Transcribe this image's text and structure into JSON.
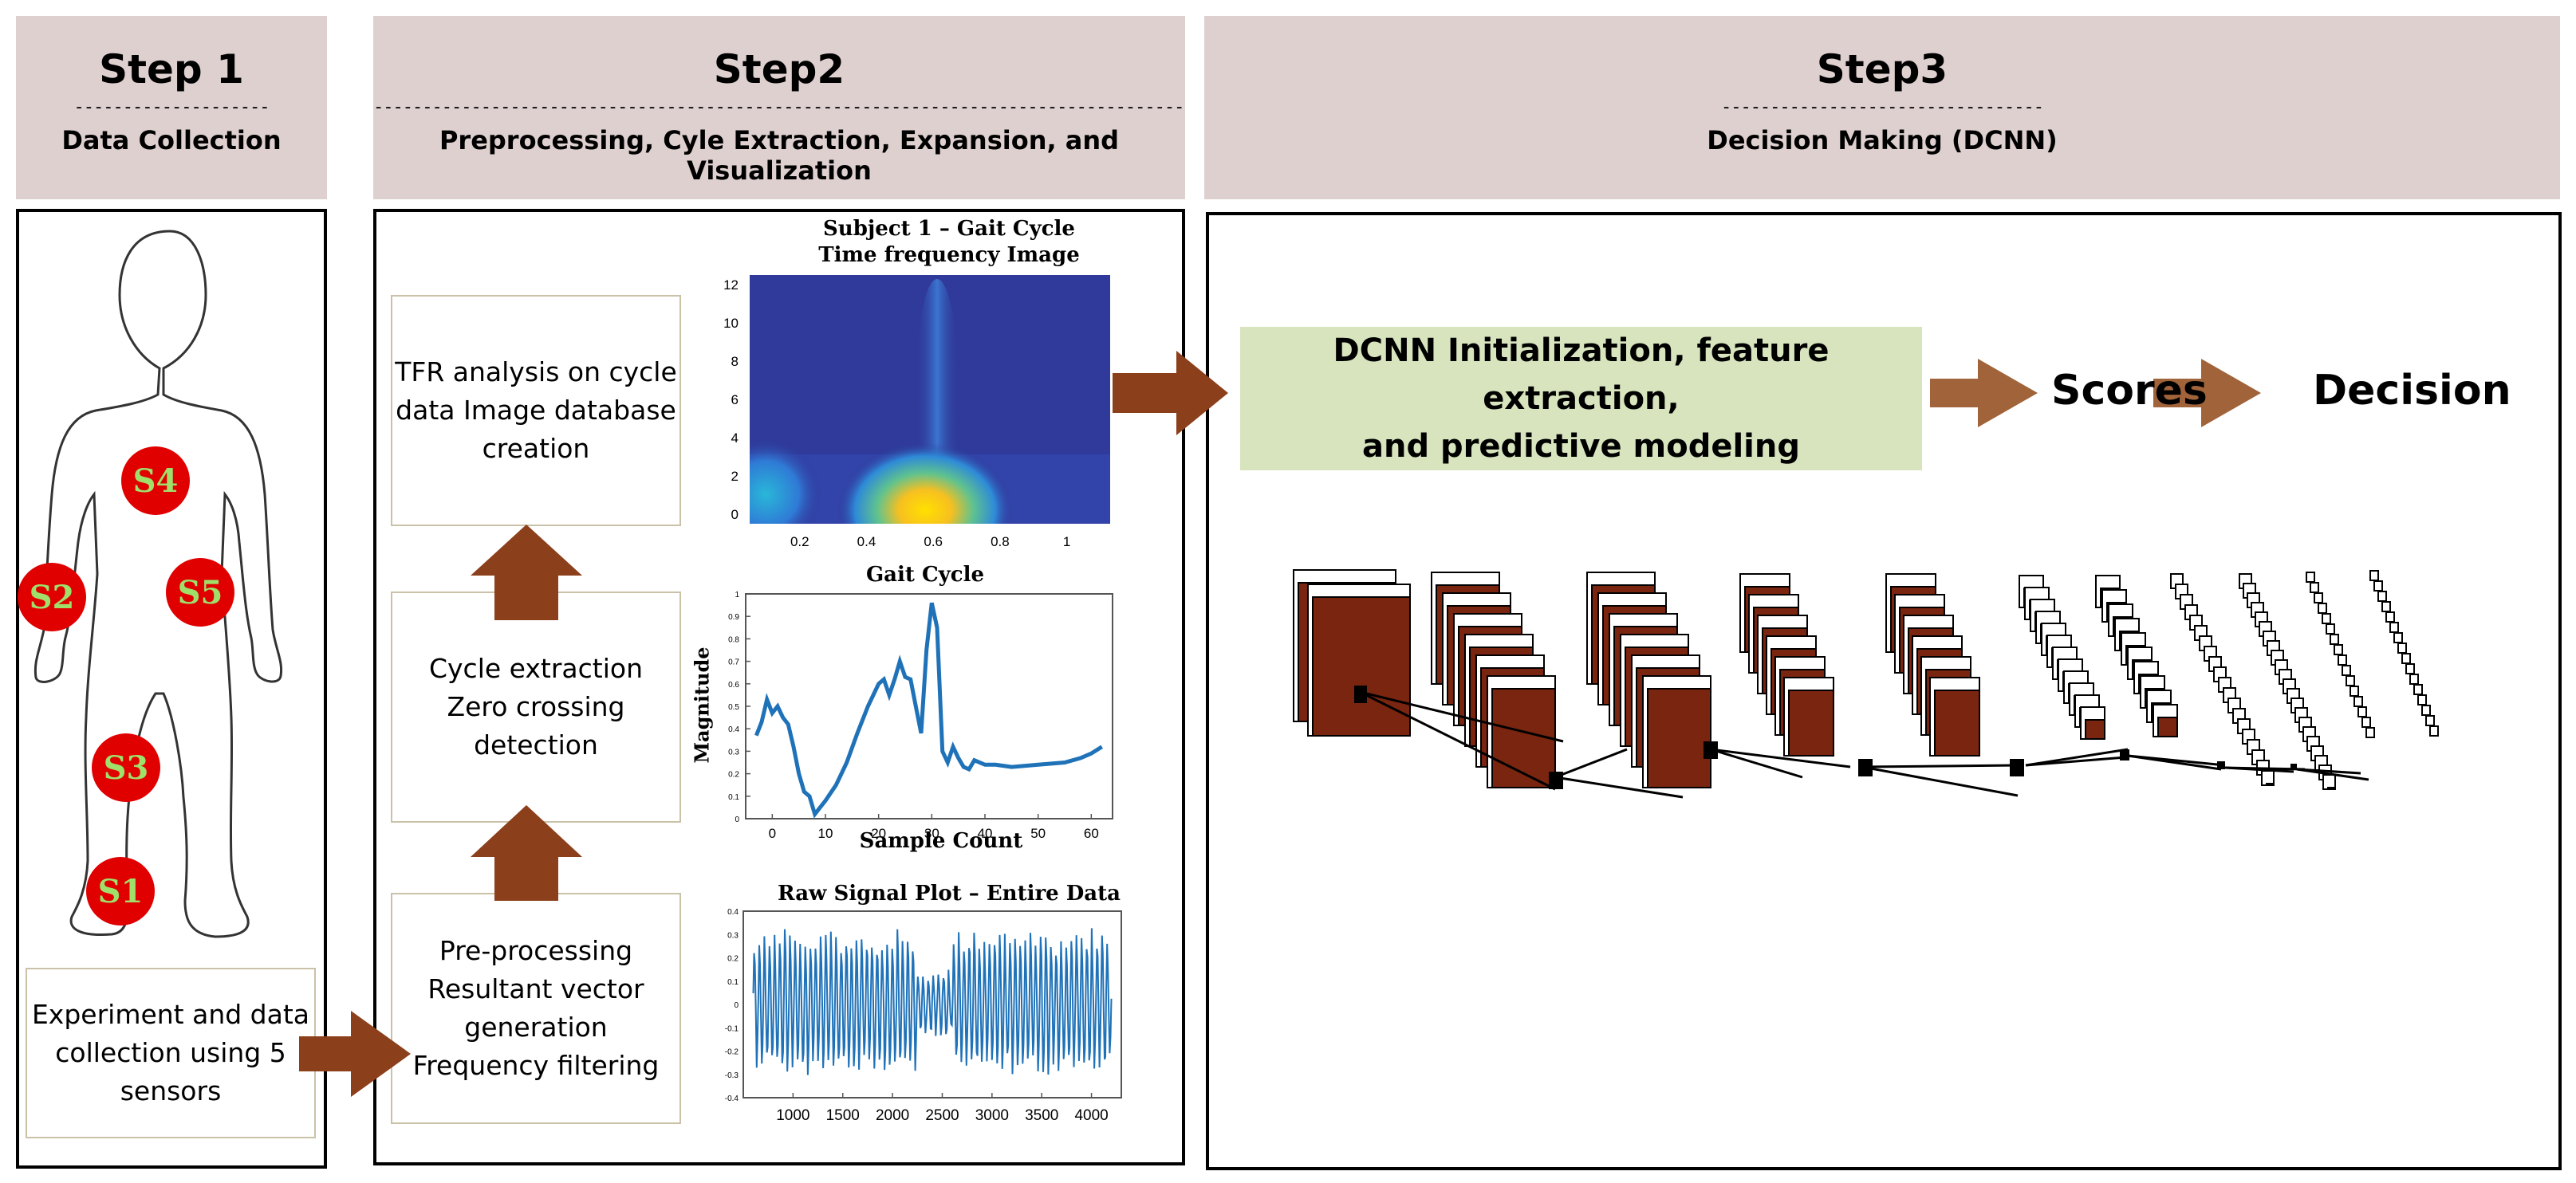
{
  "steps": [
    {
      "title": "Step 1",
      "dashes": "--------------------",
      "subtitle": "Data Collection"
    },
    {
      "title": "Step2",
      "dashes": "--------------------------------------------------------------------------------------------",
      "subtitle": "Preprocessing, Cyle Extraction, Expansion, and Visualization"
    },
    {
      "title": "Step3",
      "dashes": "---------------------------------",
      "subtitle": "Decision Making (DCNN)"
    }
  ],
  "step1": {
    "sensors": [
      "S4",
      "S2",
      "S5",
      "S3",
      "S1"
    ],
    "box_text": "Experiment and data\ncollection using 5\nsensors"
  },
  "step2": {
    "boxes": [
      {
        "text": "TFR analysis on cycle\ndata Image database\ncreation"
      },
      {
        "text": "Cycle extraction\nZero crossing\ndetection"
      },
      {
        "text": "Pre-processing\nResultant vector\ngeneration\nFrequency filtering"
      }
    ]
  },
  "step3": {
    "dcnn_text": "DCNN Initialization, feature extraction,\nand predictive modeling",
    "scores": "Scores",
    "decision": "Decision"
  },
  "chart_data": [
    {
      "type": "heatmap",
      "title": "Subject 1 – Gait Cycle",
      "subtitle": "Time frequency Image",
      "xlabel": "",
      "ylabel": "",
      "xticks": [
        0.2,
        0.4,
        0.6,
        0.8,
        1
      ],
      "yticks": [
        0,
        2,
        4,
        6,
        8,
        10,
        12
      ],
      "xlim": [
        0.05,
        1.13
      ],
      "ylim": [
        -0.5,
        12.5
      ]
    },
    {
      "type": "line",
      "title": "Gait Cycle",
      "xlabel": "Sample Count",
      "ylabel": "Magnitude",
      "xlim": [
        -5,
        64
      ],
      "ylim": [
        0,
        1
      ],
      "xticks": [
        0,
        10,
        20,
        30,
        40,
        50,
        60
      ],
      "yticks": [
        0,
        0.1,
        0.2,
        0.3,
        0.4,
        0.5,
        0.6,
        0.7,
        0.8,
        0.9,
        1
      ],
      "x": [
        -3,
        -2,
        -1,
        0,
        1,
        2,
        3,
        4,
        5,
        6,
        7,
        8,
        9,
        10,
        12,
        14,
        16,
        18,
        20,
        21,
        22,
        23,
        24,
        25,
        26,
        27,
        28,
        29,
        30,
        31,
        32,
        33,
        34,
        35,
        36,
        37,
        38,
        40,
        42,
        45,
        50,
        55,
        58,
        60,
        62
      ],
      "y": [
        0.37,
        0.43,
        0.53,
        0.47,
        0.5,
        0.45,
        0.42,
        0.32,
        0.2,
        0.12,
        0.1,
        0.02,
        0.05,
        0.08,
        0.15,
        0.25,
        0.38,
        0.5,
        0.6,
        0.62,
        0.55,
        0.62,
        0.7,
        0.63,
        0.62,
        0.5,
        0.38,
        0.75,
        0.96,
        0.85,
        0.3,
        0.25,
        0.32,
        0.27,
        0.23,
        0.22,
        0.26,
        0.24,
        0.24,
        0.23,
        0.24,
        0.25,
        0.27,
        0.29,
        0.32
      ]
    },
    {
      "type": "line",
      "title": "Raw Signal Plot – Entire Data",
      "xlabel": "",
      "ylabel": "",
      "xlim": [
        500,
        4300
      ],
      "ylim": [
        -0.4,
        0.4
      ],
      "xticks": [
        1000,
        1500,
        2000,
        2500,
        3000,
        3500,
        4000
      ],
      "yticks": [
        -0.4,
        -0.3,
        -0.2,
        -0.1,
        0,
        0.1,
        0.2,
        0.3,
        0.4
      ],
      "cycles": 70,
      "amplitude_range": [
        -0.32,
        0.33
      ]
    }
  ]
}
